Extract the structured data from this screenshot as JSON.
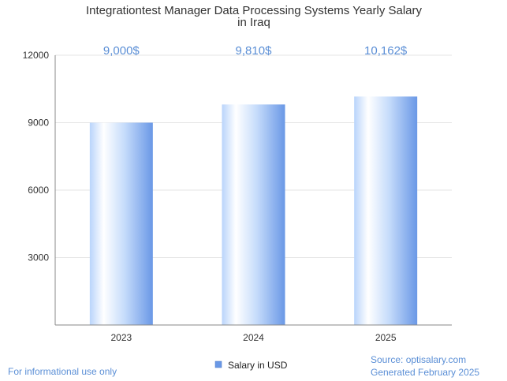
{
  "chart_data": {
    "type": "bar",
    "title_lines": [
      "Integrationtest Manager Data Processing Systems Yearly Salary",
      "in Iraq"
    ],
    "categories": [
      "2023",
      "2024",
      "2025"
    ],
    "series": [
      {
        "name": "Salary in USD",
        "values": [
          9000,
          9810,
          10162
        ]
      }
    ],
    "value_labels": [
      "9,000$",
      "9,810$",
      "10,162$"
    ],
    "y_ticks": [
      3000,
      6000,
      9000,
      12000
    ],
    "ylim": [
      0,
      12000
    ],
    "grid": true,
    "legend_position": "bottom-center",
    "colors": {
      "bar_edge": "#6a98e6",
      "bar_light": "#ffffff",
      "bar_mid": "#c6dcfb",
      "value_label": "#5b8fd6",
      "grid": "#e6e6e6",
      "axis": "#888888"
    }
  },
  "footer": {
    "disclaimer": "For informational use only",
    "source": "Source: optisalary.com",
    "generated": "Generated February 2025"
  }
}
